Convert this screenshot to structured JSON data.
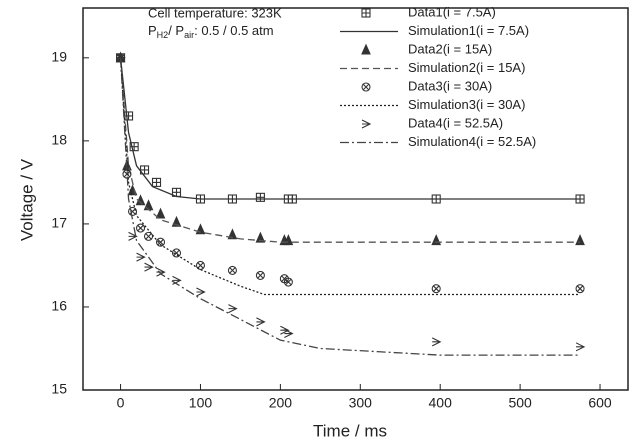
{
  "chart_data": {
    "type": "scatter-line",
    "annotations": [
      "Cell temperature: 323K",
      [
        "P",
        "H2",
        "/ P",
        "air",
        ": 0.5 / 0.5 atm"
      ]
    ],
    "x_label": "Time  /  ms",
    "y_label": "Voltage  /  V",
    "xlim": [
      -47,
      635
    ],
    "ylim": [
      15,
      19.6
    ],
    "xticks": [
      0,
      100,
      200,
      300,
      400,
      500,
      600
    ],
    "yticks": [
      15,
      16,
      17,
      18,
      19
    ],
    "series": [
      {
        "name": "Data1(i = 7.5A)",
        "color": "#333333",
        "marker": "square-plus",
        "x": [
          0,
          10,
          17,
          30,
          45,
          70,
          100,
          140,
          175,
          210,
          215,
          395,
          575
        ],
        "values": [
          19.0,
          18.3,
          17.93,
          17.65,
          17.5,
          17.38,
          17.3,
          17.3,
          17.32,
          17.3,
          17.3,
          17.3,
          17.3
        ]
      },
      {
        "name": "Simulation1(i = 7.5A)",
        "color": "#333333",
        "dash": "solid",
        "x": [
          0,
          10,
          20,
          40,
          70,
          100,
          575
        ],
        "values": [
          19.0,
          18.1,
          17.7,
          17.45,
          17.33,
          17.3,
          17.3
        ]
      },
      {
        "name": "Data2(i = 15A)",
        "color": "#333333",
        "marker": "triangle",
        "x": [
          0,
          8,
          15,
          25,
          35,
          50,
          70,
          100,
          140,
          175,
          205,
          210,
          395,
          575
        ],
        "values": [
          19.0,
          17.7,
          17.4,
          17.28,
          17.22,
          17.12,
          17.02,
          16.93,
          16.87,
          16.83,
          16.8,
          16.8,
          16.8,
          16.8
        ]
      },
      {
        "name": "Simulation2(i = 15A)",
        "color": "#555555",
        "dash": "dash",
        "x": [
          0,
          10,
          20,
          50,
          100,
          150,
          200,
          575
        ],
        "values": [
          19.0,
          17.7,
          17.3,
          17.05,
          16.9,
          16.82,
          16.78,
          16.78
        ]
      },
      {
        "name": "Data3(i = 30A)",
        "color": "#333333",
        "marker": "circle-x",
        "x": [
          0,
          8,
          15,
          25,
          35,
          50,
          70,
          100,
          140,
          175,
          205,
          210,
          395,
          575
        ],
        "values": [
          19.0,
          17.6,
          17.15,
          16.95,
          16.85,
          16.78,
          16.65,
          16.5,
          16.44,
          16.38,
          16.34,
          16.3,
          16.22,
          16.22
        ]
      },
      {
        "name": "Simulation3(i = 30A)",
        "color": "#222222",
        "dash": "dot",
        "x": [
          0,
          10,
          20,
          50,
          100,
          150,
          180,
          575
        ],
        "values": [
          19.0,
          17.5,
          17.1,
          16.75,
          16.45,
          16.25,
          16.15,
          16.15
        ]
      },
      {
        "name": "Data4(i = 52.5A)",
        "color": "#333333",
        "marker": "arrow",
        "x": [
          0,
          15,
          25,
          35,
          50,
          70,
          100,
          140,
          175,
          205,
          210,
          395,
          575
        ],
        "values": [
          19.0,
          16.85,
          16.6,
          16.48,
          16.42,
          16.32,
          16.18,
          15.98,
          15.82,
          15.72,
          15.68,
          15.58,
          15.52
        ]
      },
      {
        "name": "Simulation4(i = 52.5A)",
        "color": "#444444",
        "dash": "dashdot",
        "x": [
          0,
          10,
          20,
          50,
          100,
          150,
          200,
          250,
          400,
          575
        ],
        "values": [
          19.0,
          17.3,
          16.8,
          16.4,
          16.1,
          15.85,
          15.6,
          15.5,
          15.42,
          15.42
        ]
      }
    ]
  }
}
